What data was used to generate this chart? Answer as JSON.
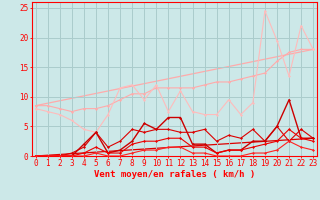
{
  "x": [
    0,
    1,
    2,
    3,
    4,
    5,
    6,
    7,
    8,
    9,
    10,
    11,
    12,
    13,
    14,
    15,
    16,
    17,
    18,
    19,
    20,
    21,
    22,
    23
  ],
  "line1_y": [
    8.5,
    8.5,
    8.0,
    7.5,
    8.0,
    8.0,
    8.5,
    9.5,
    10.5,
    10.5,
    11.5,
    11.5,
    11.5,
    11.5,
    12.0,
    12.5,
    12.5,
    13.0,
    13.5,
    14.0,
    16.0,
    17.5,
    18.0,
    18.0
  ],
  "line2_y": [
    8.0,
    7.5,
    7.0,
    6.0,
    4.5,
    4.0,
    7.0,
    11.5,
    12.0,
    9.5,
    12.0,
    7.5,
    11.0,
    7.5,
    7.0,
    7.0,
    9.5,
    7.0,
    9.0,
    24.5,
    19.5,
    13.5,
    22.0,
    18.0
  ],
  "line3_y": [
    0.0,
    0.0,
    0.0,
    0.5,
    1.5,
    4.0,
    1.5,
    2.5,
    4.5,
    4.0,
    4.5,
    4.5,
    4.0,
    4.0,
    4.5,
    2.5,
    3.5,
    3.0,
    4.5,
    2.5,
    5.0,
    2.5,
    4.5,
    3.0
  ],
  "line4_y": [
    0.0,
    0.0,
    0.0,
    0.0,
    2.0,
    4.0,
    0.5,
    1.0,
    2.5,
    5.5,
    4.5,
    6.5,
    6.5,
    2.0,
    2.0,
    0.5,
    1.0,
    1.0,
    2.5,
    2.5,
    5.0,
    9.5,
    3.0,
    3.0
  ],
  "line5_y": [
    0.0,
    0.0,
    0.0,
    0.0,
    0.5,
    1.5,
    0.5,
    0.5,
    2.0,
    2.5,
    2.5,
    3.0,
    3.0,
    1.5,
    1.5,
    0.5,
    1.0,
    1.0,
    1.5,
    2.0,
    2.5,
    4.5,
    3.0,
    2.5
  ],
  "line6_y": [
    0.0,
    0.0,
    0.0,
    0.0,
    0.0,
    0.5,
    0.0,
    0.0,
    0.5,
    1.0,
    1.0,
    1.5,
    1.5,
    0.5,
    0.5,
    0.0,
    0.0,
    0.0,
    0.5,
    0.5,
    1.0,
    2.5,
    1.5,
    1.0
  ],
  "trend1_x": [
    0,
    23
  ],
  "trend1_y": [
    8.5,
    18.0
  ],
  "trend2_x": [
    0,
    23
  ],
  "trend2_y": [
    0.0,
    3.0
  ],
  "bg_color": "#cce8e8",
  "grid_color": "#aacccc",
  "line1_color": "#ffaaaa",
  "line2_color": "#ffbbbb",
  "line3_color": "#dd0000",
  "line4_color": "#cc0000",
  "line5_color": "#ee0000",
  "line6_color": "#ff2222",
  "xlabel": "Vent moyen/en rafales ( km/h )",
  "tick_fontsize": 5.5,
  "ylim": [
    0,
    26
  ],
  "xlim": [
    -0.3,
    23.3
  ]
}
